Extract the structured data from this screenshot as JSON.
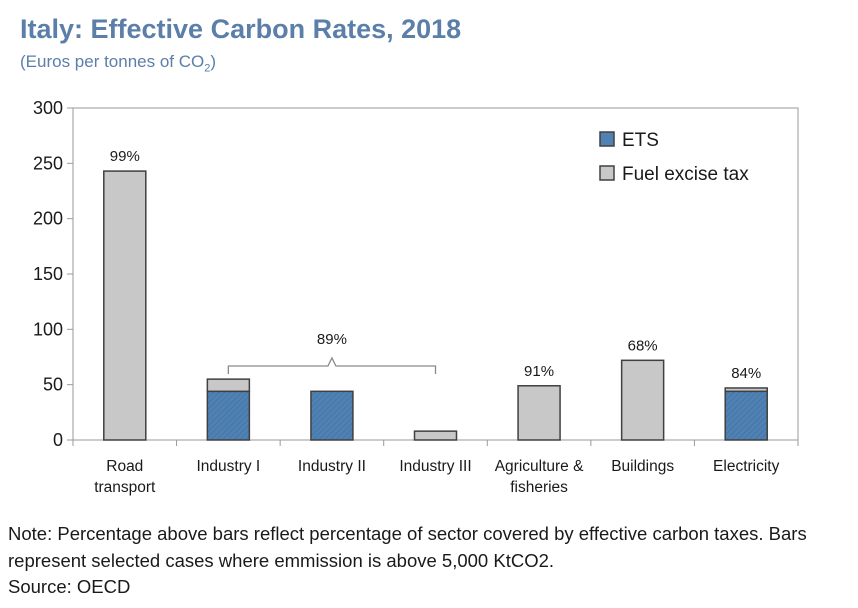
{
  "title": "Italy: Effective Carbon Rates, 2018",
  "subtitle_prefix": "(Euros per tonnes of CO",
  "subtitle_sub": "2",
  "subtitle_suffix": ")",
  "note": "Note: Percentage above bars reflect percentage of sector covered by effective carbon taxes. Bars represent selected cases where emmission is above 5,000 KtCO2.",
  "source": "Source: OECD",
  "colors": {
    "ets": "#4f81b3",
    "fuel": "#c8c8c8",
    "border": "#404040",
    "axis": "#9a9a9a"
  },
  "chart_data": {
    "type": "bar",
    "stacked": true,
    "categories": [
      [
        "Road",
        "transport"
      ],
      [
        "Industry I"
      ],
      [
        "Industry II"
      ],
      [
        "Industry III"
      ],
      [
        "Agriculture &",
        "fisheries"
      ],
      [
        "Buildings"
      ],
      [
        "Electricity"
      ]
    ],
    "series": [
      {
        "name": "ETS",
        "values": [
          0,
          44,
          44,
          0,
          0,
          0,
          44
        ]
      },
      {
        "name": "Fuel excise tax",
        "values": [
          243,
          11,
          0,
          8,
          49,
          72,
          3
        ]
      }
    ],
    "bar_labels": [
      "99%",
      "",
      "",
      "",
      "91%",
      "68%",
      "84%"
    ],
    "bracket_label": "89%",
    "ylim": [
      0,
      300
    ],
    "yticks": [
      0,
      50,
      100,
      150,
      200,
      250,
      300
    ],
    "legend_position": "top-right",
    "grid": false
  }
}
